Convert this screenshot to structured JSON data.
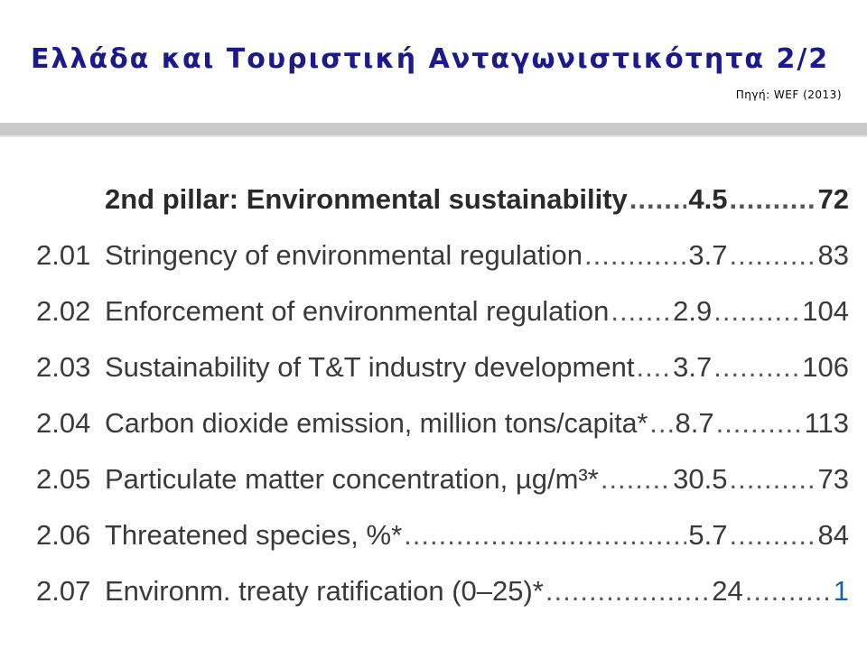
{
  "title": "Ελλάδα και Τουριστική Ανταγωνιστικότητα 2/2",
  "source": "Πηγή: WEF (2013)",
  "colors": {
    "title": "#1a1a8c",
    "highlight_rank": "#1f5fa8",
    "rule": "#c9c9c9"
  },
  "pillar": {
    "label": "2nd pillar: Environmental sustainability",
    "score": "4.5",
    "rank": "72"
  },
  "rows": [
    {
      "code": "2.01",
      "label": "Stringency of environmental regulation",
      "score": "3.7",
      "rank": "83"
    },
    {
      "code": "2.02",
      "label": "Enforcement of environmental regulation",
      "score": "2.9",
      "rank": "104"
    },
    {
      "code": "2.03",
      "label": "Sustainability of T&T industry development",
      "score": "3.7",
      "rank": "106"
    },
    {
      "code": "2.04",
      "label": "Carbon dioxide emission, million tons/capita*",
      "score": "8.7",
      "rank": "113"
    },
    {
      "code": "2.05",
      "label": "Particulate matter concentration, µg/m³*",
      "score": "30.5",
      "rank": "73"
    },
    {
      "code": "2.06",
      "label": "Threatened species, %*",
      "score": "5.7",
      "rank": "84"
    },
    {
      "code": "2.07",
      "label": "Environm. treaty ratification (0–25)*",
      "score": "24",
      "rank": "1"
    }
  ]
}
